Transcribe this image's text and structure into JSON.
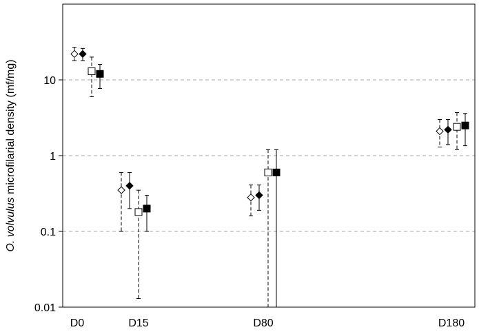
{
  "chart_data": {
    "type": "scatter",
    "title": "",
    "xlabel": "",
    "ylabel_italic": "O. volvulus",
    "ylabel_rest": " microfilarial density (mf/mg)",
    "yscale": "log",
    "ylim": [
      0.01,
      100
    ],
    "y_ticks": [
      {
        "value": 0.01,
        "label": "0.01"
      },
      {
        "value": 0.1,
        "label": "0.1"
      },
      {
        "value": 1,
        "label": "1"
      },
      {
        "value": 10,
        "label": "10"
      }
    ],
    "gridlines_y": [
      0.1,
      1,
      10
    ],
    "grid_style": "dashed",
    "categories": [
      "D0",
      "D15",
      "D80",
      "D180"
    ],
    "series": [
      {
        "marker": "diamond-open",
        "errorbar": "dashed",
        "values": [
          22,
          0.35,
          0.28,
          2.1
        ],
        "lower": [
          18,
          0.1,
          0.16,
          1.3
        ],
        "upper": [
          27,
          0.6,
          0.41,
          3.0
        ]
      },
      {
        "marker": "diamond-filled",
        "errorbar": "solid",
        "values": [
          22,
          0.4,
          0.3,
          2.2
        ],
        "lower": [
          18,
          0.2,
          0.19,
          1.4
        ],
        "upper": [
          26,
          0.6,
          0.41,
          3.0
        ]
      },
      {
        "marker": "square-open",
        "errorbar": "dashed",
        "values": [
          13,
          0.18,
          0.6,
          2.4
        ],
        "lower": [
          6,
          0.013,
          0.01,
          1.2
        ],
        "upper": [
          20,
          0.35,
          1.2,
          3.7
        ]
      },
      {
        "marker": "square-filled",
        "errorbar": "solid",
        "values": [
          12,
          0.2,
          0.6,
          2.5
        ],
        "lower": [
          7.7,
          0.1,
          0.01,
          1.35
        ],
        "upper": [
          16,
          0.3,
          1.2,
          3.6
        ]
      }
    ]
  }
}
